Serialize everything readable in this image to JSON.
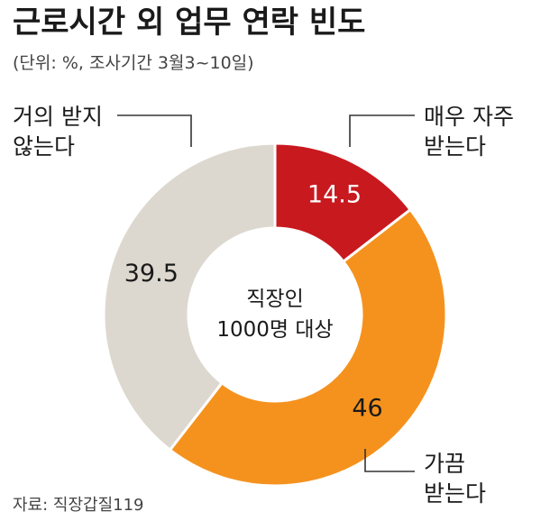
{
  "title": "근로시간 외 업무 연락 빈도",
  "subtitle": "(단위: %, 조사기간 3월3~10일)",
  "source": "자료: 직장갑질119",
  "chart_data": {
    "type": "pie",
    "variant": "donut",
    "unit": "%",
    "center_label": [
      "직장인",
      "1000명 대상"
    ],
    "slices": [
      {
        "label": [
          "매우 자주",
          "받는다"
        ],
        "value": 14.5,
        "color": "#c8191f",
        "value_color": "#ffffff"
      },
      {
        "label": [
          "가끔",
          "받는다"
        ],
        "value": 46,
        "color": "#f5921e",
        "value_color": "#1a1a1a"
      },
      {
        "label": [
          "거의 받지",
          "않는다"
        ],
        "value": 39.5,
        "color": "#ddd8cf",
        "value_color": "#1a1a1a"
      }
    ]
  }
}
